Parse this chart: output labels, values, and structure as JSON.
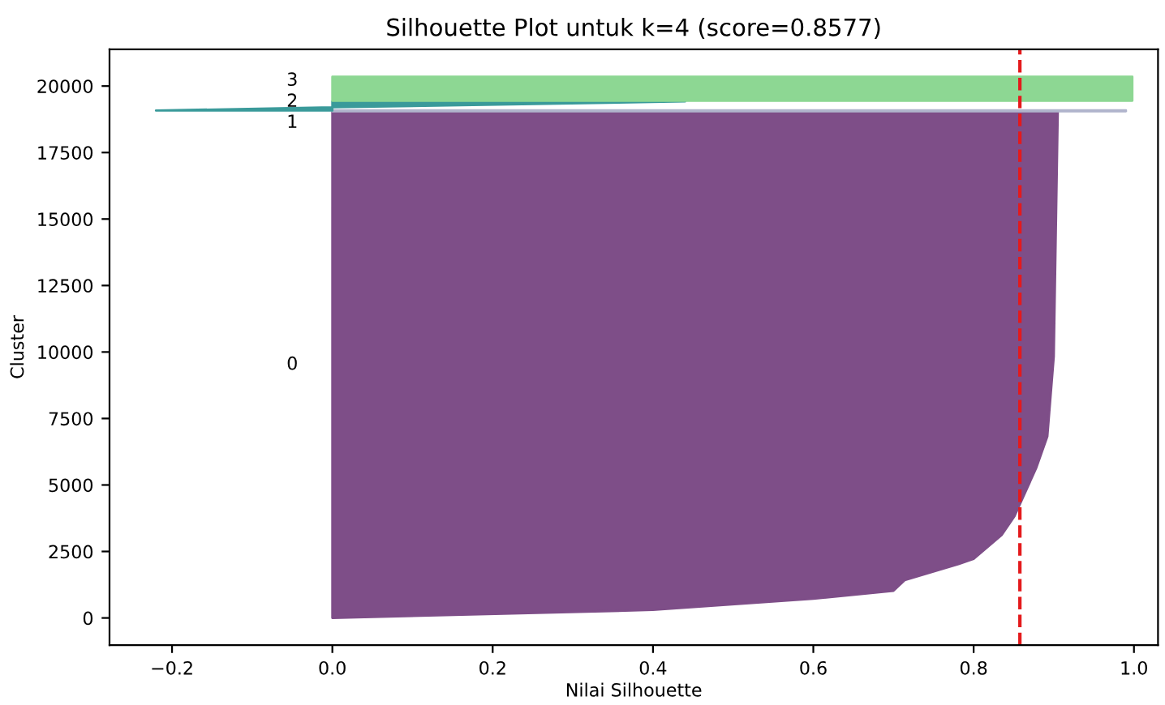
{
  "chart_data": {
    "type": "area",
    "orientation": "horizontal",
    "title": "Silhouette Plot untuk k=4 (score=0.8577)",
    "xlabel": "Nilai Silhouette",
    "ylabel": "Cluster",
    "series": [
      {
        "color": "#7e4e88",
        "x": [
          0,
          300,
          720,
          1020,
          1420,
          2020,
          2220,
          3120,
          3830,
          5630,
          6830,
          9830,
          19040
        ],
        "values": [
          0.0,
          0.4,
          0.6,
          0.7,
          0.714,
          0.781,
          0.8,
          0.835,
          0.851,
          0.878,
          0.892,
          0.9,
          0.905
        ]
      },
      {
        "color": "#b0b4cc",
        "x": [
          19050,
          19090
        ],
        "values": [
          0.99,
          0.99
        ]
      },
      {
        "color": "#3a9a9a",
        "x": [
          19080,
          19200,
          19420
        ],
        "values": [
          -0.22,
          0.0,
          0.44
        ]
      },
      {
        "color": "#8dd793",
        "x": [
          19450,
          20350
        ],
        "values": [
          0.998,
          0.998
        ]
      }
    ],
    "annotations": [
      "0",
      "1",
      "2",
      "3"
    ],
    "ref_lines": [
      {
        "axis": "x",
        "value": 0.8577,
        "color": "#e41a1c",
        "line_style": "dashed"
      }
    ],
    "xlim": [
      -0.278,
      1.03
    ],
    "ylim": [
      -1020,
      21380
    ],
    "xticks": [
      {
        "value": -0.2,
        "label": "−0.2"
      },
      {
        "value": 0.0,
        "label": "0.0"
      },
      {
        "value": 0.2,
        "label": "0.2"
      },
      {
        "value": 0.4,
        "label": "0.4"
      },
      {
        "value": 0.6,
        "label": "0.6"
      },
      {
        "value": 0.8,
        "label": "0.8"
      },
      {
        "value": 1.0,
        "label": "1.0"
      }
    ],
    "yticks": [
      0,
      2500,
      5000,
      7500,
      10000,
      12500,
      15000,
      17500,
      20000
    ],
    "grid": false,
    "legend": false
  }
}
